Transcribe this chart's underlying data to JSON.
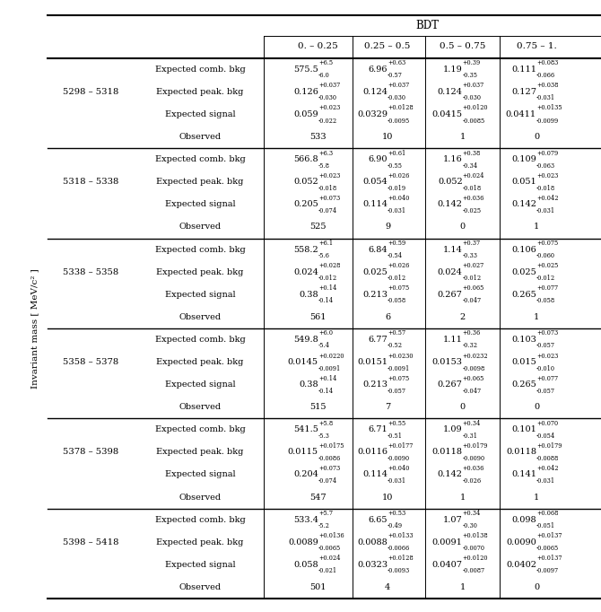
{
  "title": "BDT",
  "col_headers": [
    "0. – 0.25",
    "0.25 – 0.5",
    "0.5 – 0.75",
    "0.75 – 1."
  ],
  "y_label": "Invariant mass [ MeV/c² ]",
  "row_labels": [
    "Expected comb. bkg",
    "Expected peak. bkg",
    "Expected signal",
    "Observed"
  ],
  "data": [
    {
      "mass": "5298 – 5318",
      "rows": [
        [
          "575.5|+6.5|-6.0",
          "6.96|+0.63|-0.57",
          "1.19|+0.39|-0.35",
          "0.111|+0.083|-0.066"
        ],
        [
          "0.126|+0.037|-0.030",
          "0.124|+0.037|-0.030",
          "0.124|+0.037|-0.030",
          "0.127|+0.038|-0.031"
        ],
        [
          "0.059|+0.023|-0.022",
          "0.0329|+0.0128|-0.0095",
          "0.0415|+0.0120|-0.0085",
          "0.0411|+0.0135|-0.0099"
        ],
        [
          "533",
          "10",
          "1",
          "0"
        ]
      ]
    },
    {
      "mass": "5318 – 5338",
      "rows": [
        [
          "566.8|+6.3|-5.8",
          "6.90|+0.61|-0.55",
          "1.16|+0.38|-0.34",
          "0.109|+0.079|-0.063"
        ],
        [
          "0.052|+0.023|-0.018",
          "0.054|+0.026|-0.019",
          "0.052|+0.024|-0.018",
          "0.051|+0.023|-0.018"
        ],
        [
          "0.205|+0.073|-0.074",
          "0.114|+0.040|-0.031",
          "0.142|+0.036|-0.025",
          "0.142|+0.042|-0.031"
        ],
        [
          "525",
          "9",
          "0",
          "1"
        ]
      ]
    },
    {
      "mass": "5338 – 5358",
      "rows": [
        [
          "558.2|+6.1|-5.6",
          "6.84|+0.59|-0.54",
          "1.14|+0.37|-0.33",
          "0.106|+0.075|-0.060"
        ],
        [
          "0.024|+0.028|-0.012",
          "0.025|+0.026|-0.012",
          "0.024|+0.027|-0.012",
          "0.025|+0.025|-0.012"
        ],
        [
          "0.38|+0.14|-0.14",
          "0.213|+0.075|-0.058",
          "0.267|+0.065|-0.047",
          "0.265|+0.077|-0.058"
        ],
        [
          "561",
          "6",
          "2",
          "1"
        ]
      ]
    },
    {
      "mass": "5358 – 5378",
      "rows": [
        [
          "549.8|+6.0|-5.4",
          "6.77|+0.57|-0.52",
          "1.11|+0.36|-0.32",
          "0.103|+0.073|-0.057"
        ],
        [
          "0.0145|+0.0220|-0.0091",
          "0.0151|+0.0230|-0.0091",
          "0.0153|+0.0232|-0.0098",
          "0.015|+0.023|-0.010"
        ],
        [
          "0.38|+0.14|-0.14",
          "0.213|+0.075|-0.057",
          "0.267|+0.065|-0.047",
          "0.265|+0.077|-0.057"
        ],
        [
          "515",
          "7",
          "0",
          "0"
        ]
      ]
    },
    {
      "mass": "5378 – 5398",
      "rows": [
        [
          "541.5|+5.8|-5.3",
          "6.71|+0.55|-0.51",
          "1.09|+0.34|-0.31",
          "0.101|+0.070|-0.054"
        ],
        [
          "0.0115|+0.0175|-0.0086",
          "0.0116|+0.0177|-0.0090",
          "0.0118|+0.0179|-0.0090",
          "0.0118|+0.0179|-0.0088"
        ],
        [
          "0.204|+0.073|-0.074",
          "0.114|+0.040|-0.031",
          "0.142|+0.036|-0.026",
          "0.141|+0.042|-0.031"
        ],
        [
          "547",
          "10",
          "1",
          "1"
        ]
      ]
    },
    {
      "mass": "5398 – 5418",
      "rows": [
        [
          "533.4|+5.7|-5.2",
          "6.65|+0.53|-0.49",
          "1.07|+0.34|-0.30",
          "0.098|+0.068|-0.051"
        ],
        [
          "0.0089|+0.0136|-0.0065",
          "0.0088|+0.0133|-0.0066",
          "0.0091|+0.0138|-0.0070",
          "0.0090|+0.0137|-0.0065"
        ],
        [
          "0.058|+0.024|-0.021",
          "0.0323|+0.0128|-0.0093",
          "0.0407|+0.0120|-0.0087",
          "0.0402|+0.0137|-0.0097"
        ],
        [
          "501",
          "4",
          "1",
          "0"
        ]
      ]
    }
  ],
  "bg_color": "#ffffff",
  "line_color": "#000000",
  "text_color": "#000000",
  "figw": 6.7,
  "figh": 6.82,
  "dpi": 100
}
